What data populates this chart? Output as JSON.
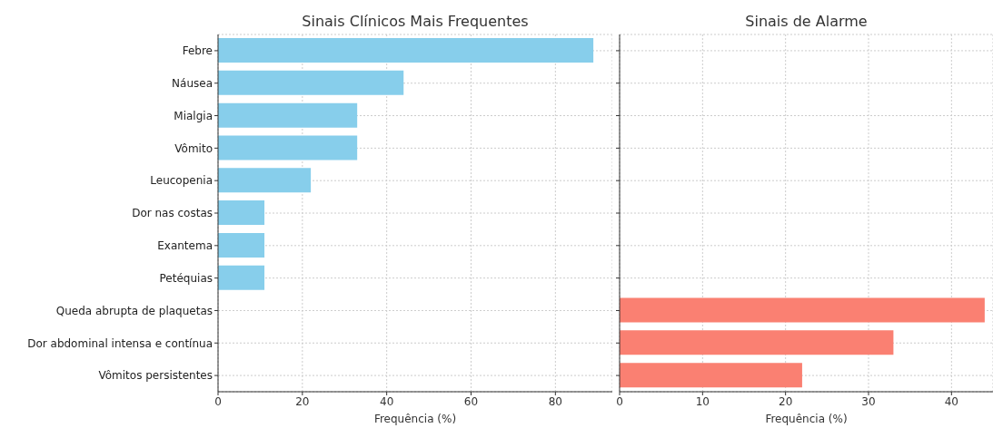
{
  "chart_data": [
    {
      "type": "bar",
      "orientation": "horizontal",
      "title": "Sinais Clínicos Mais Frequentes",
      "xlabel": "Frequência (%)",
      "categories": [
        "Febre",
        "Náusea",
        "Mialgia",
        "Vômito",
        "Leucopenia",
        "Dor nas costas",
        "Exantema",
        "Petéquias",
        "Queda abrupta de plaquetas",
        "Dor abdominal intensa e contínua",
        "Vômitos persistentes"
      ],
      "values": [
        89,
        44,
        33,
        33,
        22,
        11,
        11,
        11,
        null,
        null,
        null
      ],
      "color": "#87ceeb",
      "xlim": [
        0,
        93.5
      ],
      "xticks": [
        0,
        20,
        40,
        60,
        80
      ],
      "grid": true
    },
    {
      "type": "bar",
      "orientation": "horizontal",
      "title": "Sinais de Alarme",
      "xlabel": "Frequência (%)",
      "categories": [
        null,
        null,
        null,
        null,
        null,
        null,
        null,
        null,
        null,
        null,
        null
      ],
      "values": [
        null,
        null,
        null,
        null,
        null,
        null,
        null,
        null,
        44,
        33,
        22
      ],
      "color": "#fa8072",
      "xlim": [
        0,
        45
      ],
      "xticks": [
        0,
        10,
        20,
        30,
        40
      ],
      "grid": true,
      "tick_labels": "x"
    }
  ]
}
